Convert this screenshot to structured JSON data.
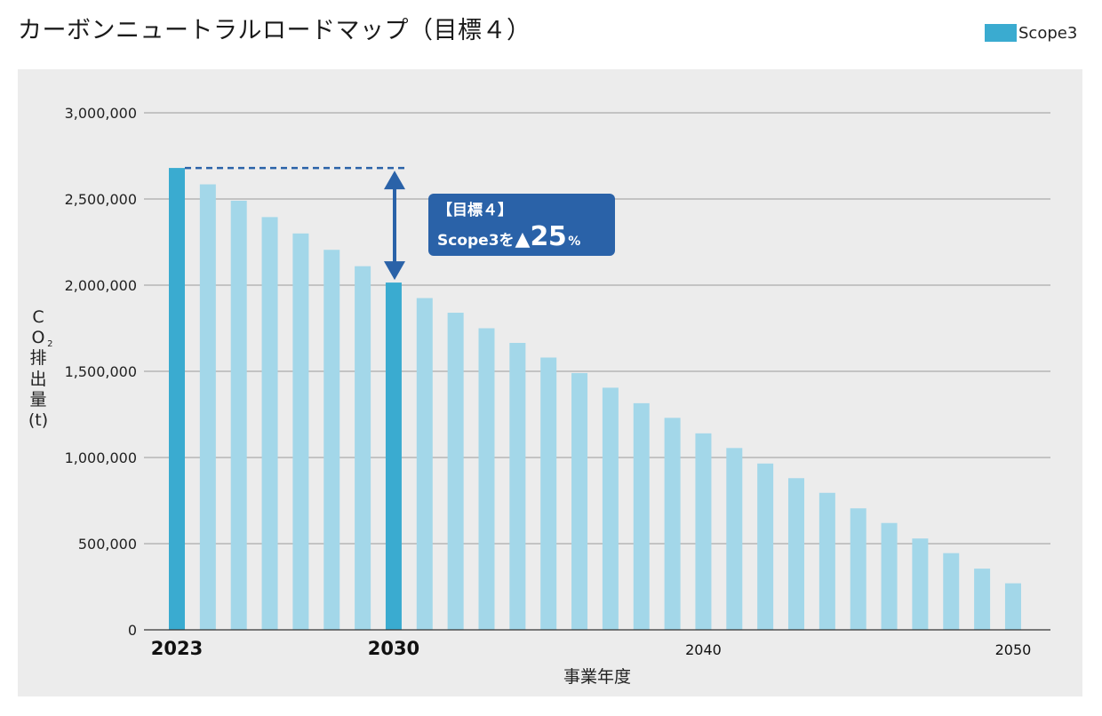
{
  "title": "カーボンニュートラルロードマップ（目標４）",
  "legend": {
    "label": "Scope3",
    "color": "#3aabd0"
  },
  "callout": {
    "line1": "【目標４】",
    "prefix": "Scope3を",
    "triangle": "▲",
    "value": "25",
    "unit": "%"
  },
  "colors": {
    "highlight": "#3aabd0",
    "normal": "#a3d7e9",
    "arrow": "#2a62a8",
    "grid": "#9a9a9a",
    "panel": "#ececec"
  },
  "chart_data": {
    "type": "bar",
    "title": "カーボンニュートラルロードマップ（目標４）",
    "xlabel": "事業年度",
    "ylabel_parts": [
      "C",
      "O",
      "2",
      "排",
      "出",
      "量",
      "(t)"
    ],
    "ylim": [
      0,
      3000000
    ],
    "yticks": [
      0,
      500000,
      1000000,
      1500000,
      2000000,
      2500000,
      3000000
    ],
    "ytick_labels": [
      "0",
      "500,000",
      "1,000,000",
      "1,500,000",
      "2,000,000",
      "2,500,000",
      "3,000,000"
    ],
    "grid": true,
    "legend_position": "top-right",
    "categories": [
      2023,
      2024,
      2025,
      2026,
      2027,
      2028,
      2029,
      2030,
      2031,
      2032,
      2033,
      2034,
      2035,
      2036,
      2037,
      2038,
      2039,
      2040,
      2041,
      2042,
      2043,
      2044,
      2045,
      2046,
      2047,
      2048,
      2049,
      2050
    ],
    "xtick_labels": [
      {
        "year": 2023,
        "label": "2023",
        "bold": true
      },
      {
        "year": 2030,
        "label": "2030",
        "bold": true
      },
      {
        "year": 2040,
        "label": "2040",
        "bold": false
      },
      {
        "year": 2050,
        "label": "2050",
        "bold": false
      }
    ],
    "highlight_years": [
      2023,
      2030
    ],
    "series": [
      {
        "name": "Scope3",
        "values": [
          2680000,
          2585000,
          2490000,
          2395000,
          2300000,
          2205000,
          2110000,
          2015000,
          1925000,
          1840000,
          1750000,
          1665000,
          1580000,
          1490000,
          1405000,
          1315000,
          1230000,
          1140000,
          1055000,
          965000,
          880000,
          795000,
          705000,
          620000,
          530000,
          445000,
          355000,
          270000
        ]
      }
    ]
  }
}
